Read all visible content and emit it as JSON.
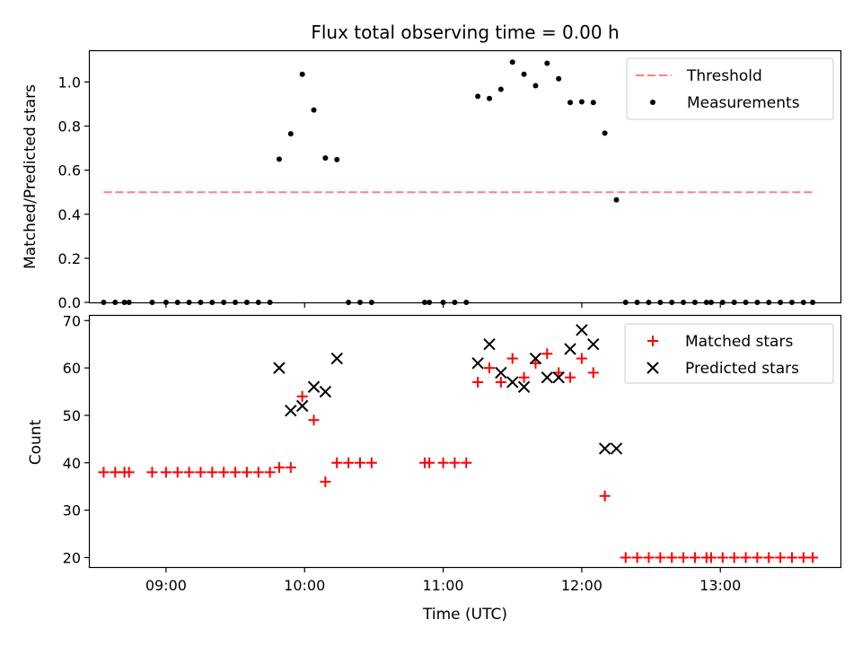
{
  "title": "Flux total observing time = 0.00 h",
  "chart_data": [
    {
      "type": "scatter",
      "ylabel": "Matched/Predicted stars",
      "ylim": [
        0,
        1.14
      ],
      "yticks": [
        "0.0",
        "0.2",
        "0.4",
        "0.6",
        "0.8",
        "1.0"
      ],
      "ytick_values": [
        0,
        0.2,
        0.4,
        0.6,
        0.8,
        1.0
      ],
      "legend_position": "top-right",
      "legend": [
        "Threshold",
        "Measurements"
      ],
      "threshold": {
        "name": "Threshold",
        "value": 0.5,
        "x_range": [
          "08:33",
          "13:40"
        ],
        "color": "#ff7f7f",
        "style": "dashed"
      },
      "measurements": {
        "name": "Measurements",
        "color": "#000000",
        "points": [
          [
            "08:33",
            0
          ],
          [
            "08:38",
            0
          ],
          [
            "08:42",
            0
          ],
          [
            "08:44",
            0
          ],
          [
            "08:54",
            0
          ],
          [
            "09:00",
            0
          ],
          [
            "09:05",
            0
          ],
          [
            "09:10",
            0
          ],
          [
            "09:15",
            0
          ],
          [
            "09:20",
            0
          ],
          [
            "09:25",
            0
          ],
          [
            "09:30",
            0
          ],
          [
            "09:35",
            0
          ],
          [
            "09:40",
            0
          ],
          [
            "09:45",
            0
          ],
          [
            "09:49",
            0.65
          ],
          [
            "09:54",
            0.765
          ],
          [
            "09:59",
            1.035
          ],
          [
            "10:04",
            0.873
          ],
          [
            "10:09",
            0.655
          ],
          [
            "10:14",
            0.648
          ],
          [
            "10:19",
            0
          ],
          [
            "10:24",
            0
          ],
          [
            "10:29",
            0
          ],
          [
            "10:52",
            0
          ],
          [
            "10:54",
            0
          ],
          [
            "11:00",
            0
          ],
          [
            "11:05",
            0
          ],
          [
            "11:10",
            0
          ],
          [
            "11:15",
            0.935
          ],
          [
            "11:20",
            0.925
          ],
          [
            "11:25",
            0.967
          ],
          [
            "11:30",
            1.09
          ],
          [
            "11:35",
            1.035
          ],
          [
            "11:40",
            0.983
          ],
          [
            "11:45",
            1.085
          ],
          [
            "11:50",
            1.015
          ],
          [
            "11:55",
            0.907
          ],
          [
            "12:00",
            0.91
          ],
          [
            "12:05",
            0.907
          ],
          [
            "12:10",
            0.768
          ],
          [
            "12:15",
            0.465
          ],
          [
            "12:19",
            0
          ],
          [
            "12:24",
            0
          ],
          [
            "12:29",
            0
          ],
          [
            "12:34",
            0
          ],
          [
            "12:39",
            0
          ],
          [
            "12:44",
            0
          ],
          [
            "12:49",
            0
          ],
          [
            "12:54",
            0
          ],
          [
            "12:56",
            0
          ],
          [
            "13:01",
            0
          ],
          [
            "13:06",
            0
          ],
          [
            "13:11",
            0
          ],
          [
            "13:16",
            0
          ],
          [
            "13:21",
            0
          ],
          [
            "13:26",
            0
          ],
          [
            "13:31",
            0
          ],
          [
            "13:36",
            0
          ],
          [
            "13:40",
            0
          ]
        ]
      }
    },
    {
      "type": "scatter",
      "xlabel": "Time (UTC)",
      "ylabel": "Count",
      "xlim": [
        "08:27",
        "13:52"
      ],
      "ylim": [
        18,
        71
      ],
      "yticks": [
        "20",
        "30",
        "40",
        "50",
        "60",
        "70"
      ],
      "ytick_values": [
        20,
        30,
        40,
        50,
        60,
        70
      ],
      "xticks": [
        "09:00",
        "10:00",
        "11:00",
        "12:00",
        "13:00"
      ],
      "xtick_values": [
        "09:00",
        "10:00",
        "11:00",
        "12:00",
        "13:00"
      ],
      "legend_position": "top-right",
      "legend": [
        "Matched stars",
        "Predicted stars"
      ],
      "series": [
        {
          "name": "Matched stars",
          "color": "#ff0000",
          "marker": "plus",
          "points": [
            [
              "08:33",
              38
            ],
            [
              "08:38",
              38
            ],
            [
              "08:42",
              38
            ],
            [
              "08:44",
              38
            ],
            [
              "08:54",
              38
            ],
            [
              "09:00",
              38
            ],
            [
              "09:05",
              38
            ],
            [
              "09:10",
              38
            ],
            [
              "09:15",
              38
            ],
            [
              "09:20",
              38
            ],
            [
              "09:25",
              38
            ],
            [
              "09:30",
              38
            ],
            [
              "09:35",
              38
            ],
            [
              "09:40",
              38
            ],
            [
              "09:45",
              38
            ],
            [
              "09:49",
              39
            ],
            [
              "09:54",
              39
            ],
            [
              "09:59",
              54
            ],
            [
              "10:04",
              49
            ],
            [
              "10:09",
              36
            ],
            [
              "10:14",
              40
            ],
            [
              "10:19",
              40
            ],
            [
              "10:24",
              40
            ],
            [
              "10:29",
              40
            ],
            [
              "10:52",
              40
            ],
            [
              "10:54",
              40
            ],
            [
              "11:00",
              40
            ],
            [
              "11:05",
              40
            ],
            [
              "11:10",
              40
            ],
            [
              "11:15",
              57
            ],
            [
              "11:20",
              60
            ],
            [
              "11:25",
              57
            ],
            [
              "11:30",
              62
            ],
            [
              "11:35",
              58
            ],
            [
              "11:40",
              61
            ],
            [
              "11:45",
              63
            ],
            [
              "11:50",
              59
            ],
            [
              "11:55",
              58
            ],
            [
              "12:00",
              62
            ],
            [
              "12:05",
              59
            ],
            [
              "12:10",
              33
            ],
            [
              "12:19",
              20
            ],
            [
              "12:24",
              20
            ],
            [
              "12:29",
              20
            ],
            [
              "12:34",
              20
            ],
            [
              "12:39",
              20
            ],
            [
              "12:44",
              20
            ],
            [
              "12:49",
              20
            ],
            [
              "12:54",
              20
            ],
            [
              "12:56",
              20
            ],
            [
              "13:01",
              20
            ],
            [
              "13:06",
              20
            ],
            [
              "13:11",
              20
            ],
            [
              "13:16",
              20
            ],
            [
              "13:21",
              20
            ],
            [
              "13:26",
              20
            ],
            [
              "13:31",
              20
            ],
            [
              "13:36",
              20
            ],
            [
              "13:40",
              20
            ]
          ]
        },
        {
          "name": "Predicted stars",
          "color": "#000000",
          "marker": "x",
          "points": [
            [
              "09:49",
              60
            ],
            [
              "09:54",
              51
            ],
            [
              "09:59",
              52
            ],
            [
              "10:04",
              56
            ],
            [
              "10:09",
              55
            ],
            [
              "10:14",
              62
            ],
            [
              "11:15",
              61
            ],
            [
              "11:20",
              65
            ],
            [
              "11:25",
              59
            ],
            [
              "11:30",
              57
            ],
            [
              "11:35",
              56
            ],
            [
              "11:40",
              62
            ],
            [
              "11:45",
              58
            ],
            [
              "11:50",
              58
            ],
            [
              "11:55",
              64
            ],
            [
              "12:00",
              68
            ],
            [
              "12:05",
              65
            ],
            [
              "12:10",
              43
            ],
            [
              "12:15",
              43
            ]
          ]
        }
      ]
    }
  ]
}
